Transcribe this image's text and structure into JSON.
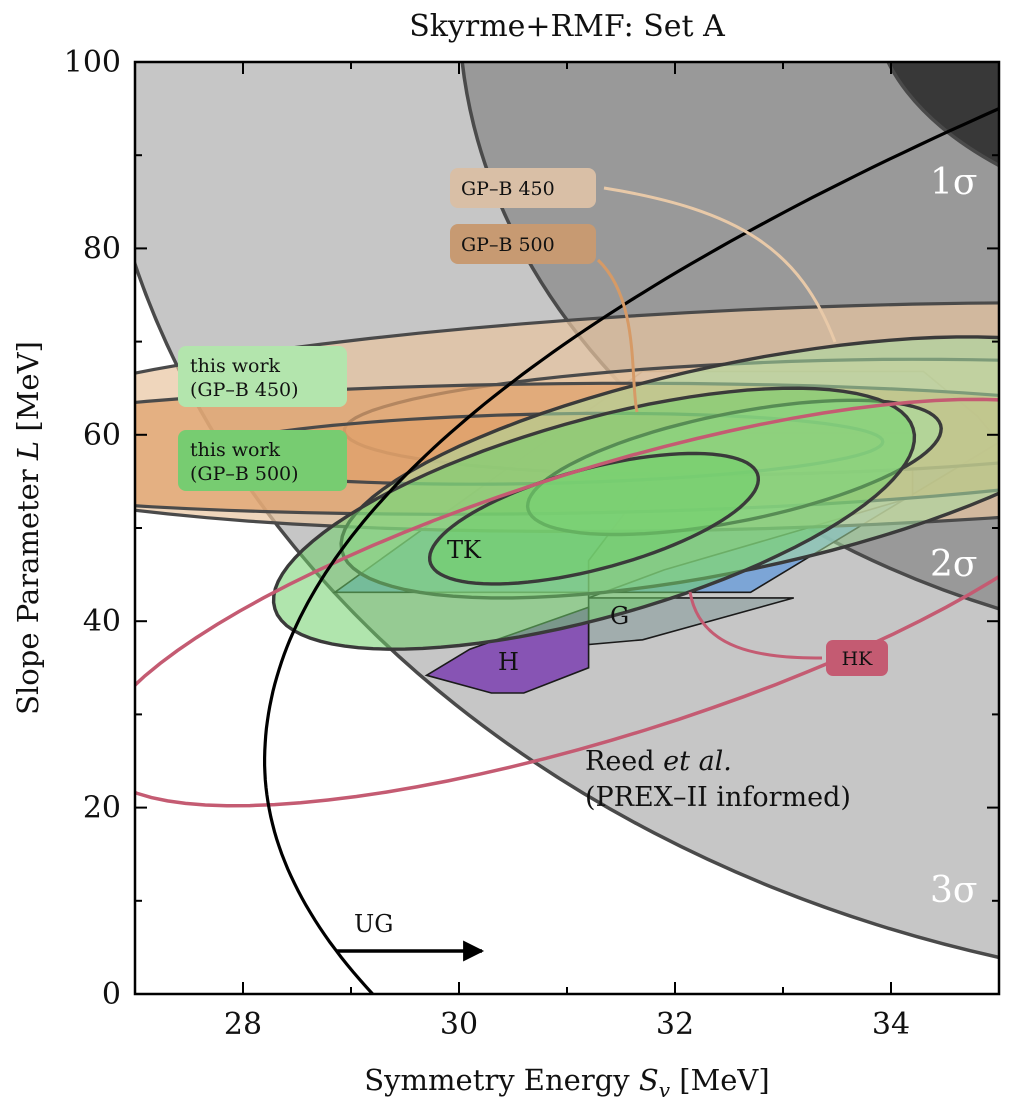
{
  "chart_data": {
    "type": "contour",
    "title": "Skyrme+RMF: Set A",
    "xlabel": "Symmetry Energy S_v [MeV]",
    "xlabel_parts": {
      "text": "Symmetry Energy ",
      "symbol": "S",
      "subscript": "v",
      "unit": " [MeV]"
    },
    "ylabel": "Slope Parameter L [MeV]",
    "ylabel_parts": {
      "text": "Slope Parameter ",
      "symbol": "L",
      "unit": " [MeV]"
    },
    "xlim": [
      27,
      35
    ],
    "ylim": [
      0,
      100
    ],
    "xticks": [
      28,
      30,
      32,
      34
    ],
    "yticks": [
      0,
      20,
      40,
      60,
      80,
      100
    ],
    "grid": false,
    "reed_prex2": {
      "label_line1": "Reed et al.",
      "label_line1_plain": "Reed ",
      "label_line1_italic": "et al.",
      "label_line2": "(PREX–II informed)",
      "center": [
        38.1,
        106
      ],
      "levels": [
        {
          "label": "1σ",
          "rx": 4.25,
          "ry": 25,
          "color": "#383838"
        },
        {
          "label": "2σ",
          "rx": 8.1,
          "ry": 70,
          "color": "#999999"
        },
        {
          "label": "3σ",
          "rx": 11.5,
          "ry": 106,
          "color": "#c6c6c6"
        }
      ]
    },
    "ug_bound": {
      "label": "UG",
      "vertex": [
        28.2,
        25
      ],
      "through": [
        35,
        95
      ],
      "bottom": [
        29.2,
        0
      ]
    },
    "constraints": [
      {
        "label": "TK",
        "color": "#6f9fd8",
        "polygon": [
          [
            28.85,
            43.1
          ],
          [
            32.7,
            43.1
          ],
          [
            35.0,
            59.2
          ],
          [
            34.8,
            62
          ],
          [
            34.3,
            66.8
          ],
          [
            31.7,
            66.8
          ]
        ]
      },
      {
        "label": "G",
        "color": "#9aa8a8",
        "polygon": [
          [
            31.2,
            42.5
          ],
          [
            31.9,
            45.5
          ],
          [
            34.2,
            53.3
          ],
          [
            34.2,
            60.2
          ],
          [
            32.1,
            60.2
          ],
          [
            31.2,
            46.5
          ],
          [
            31.2,
            37.5
          ],
          [
            31.7,
            38.0
          ],
          [
            33.1,
            42.5
          ]
        ]
      },
      {
        "label": "H",
        "color": "#7b3fb0",
        "polygon": [
          [
            29.7,
            34.2
          ],
          [
            30.1,
            37.0
          ],
          [
            31.2,
            41.5
          ],
          [
            31.2,
            35.0
          ],
          [
            30.6,
            32.3
          ],
          [
            30.3,
            32.3
          ]
        ]
      }
    ],
    "hk": {
      "label": "HK",
      "color": "#c45b72",
      "center": [
        31.35,
        42.0
      ],
      "semi_major_x": 3.5,
      "semi_major_y": 21.8,
      "width": 3.2
    },
    "gpb_posteriors": [
      {
        "label": "GP–B 450",
        "color": "#e8c4a0",
        "center": [
          33.25,
          61.9
        ],
        "ellipses": [
          {
            "rx": 3.45,
            "ry": 12.1,
            "w": 7.5
          },
          {
            "rx": 1.75,
            "ry": 6.1,
            "w": 4.1
          }
        ]
      },
      {
        "label": "GP–B 500",
        "color": "#e0a06a",
        "center": [
          30.75,
          58.5
        ],
        "ellipses": [
          {
            "rx": 2.9,
            "ry": 6.6,
            "w": 6.0
          },
          {
            "rx": 1.6,
            "ry": 3.6,
            "w": 3.0
          }
        ]
      }
    ],
    "this_work": [
      {
        "label_line1": "this work",
        "label_line2": "(GP–B 450)",
        "color": "#a8dfa0",
        "center": [
          32.55,
          56.5
        ],
        "ellipses": [
          {
            "rx": 2.25,
            "ry": 14.0,
            "w": 2.9
          },
          {
            "rx": 1.15,
            "ry": 7.2,
            "w": 1.55
          }
        ]
      },
      {
        "label_line1": "this work",
        "label_line2": "(GP–B 500)",
        "color": "#6fcf6a",
        "center": [
          31.25,
          51.0
        ],
        "ellipses": [
          {
            "rx": 1.9,
            "ry": 14.0,
            "w": 2.3
          },
          {
            "rx": 0.95,
            "ry": 7.0,
            "w": 1.2
          }
        ]
      }
    ]
  }
}
